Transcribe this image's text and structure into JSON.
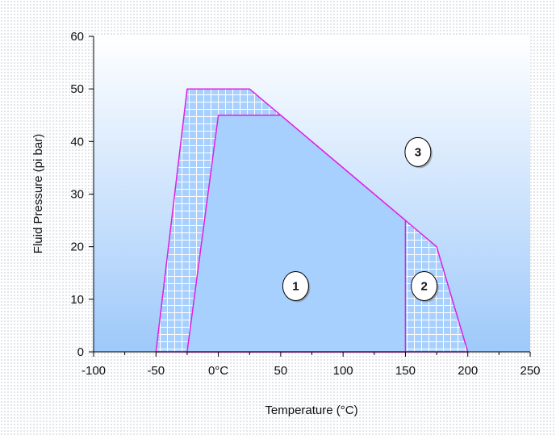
{
  "chart_data": {
    "type": "area",
    "title": "",
    "xlabel": "Temperature (°C)",
    "ylabel": "Fluid Pressure (pi bar)",
    "xlim": [
      -100,
      250
    ],
    "ylim": [
      0,
      60
    ],
    "x_ticks": [
      -100,
      -50,
      0,
      50,
      100,
      150,
      200,
      250
    ],
    "x_tick_labels": [
      "-100",
      "-50",
      "0°C",
      "50",
      "100",
      "150",
      "200",
      "250"
    ],
    "y_ticks": [
      0,
      10,
      20,
      30,
      40,
      50,
      60
    ],
    "y_tick_labels": [
      "0",
      "10",
      "20",
      "30",
      "40",
      "50",
      "60"
    ],
    "grid": false,
    "series": [
      {
        "style": "hatched",
        "outline": [
          [
            -50,
            0
          ],
          [
            -25,
            50
          ],
          [
            25,
            50
          ],
          [
            50,
            45
          ],
          [
            150,
            25
          ],
          [
            175,
            20
          ],
          [
            200,
            0
          ]
        ]
      },
      {
        "style": "solid",
        "outline": [
          [
            -25,
            0
          ],
          [
            0,
            45
          ],
          [
            50,
            45
          ],
          [
            150,
            25
          ],
          [
            150,
            0
          ]
        ]
      }
    ],
    "annotations": [
      {
        "text": "1",
        "x": 62,
        "y": 12.5
      },
      {
        "text": "2",
        "x": 165,
        "y": 12.5
      },
      {
        "text": "3",
        "x": 160,
        "y": 38
      }
    ]
  },
  "colors": {
    "boundary": "#e020e0",
    "fill": "#a8d0ff",
    "hatch_line": "#ffffff",
    "plot_bg_top": "#ffffff",
    "plot_bg_bottom": "#9ec9fa",
    "axis": "#000000"
  }
}
